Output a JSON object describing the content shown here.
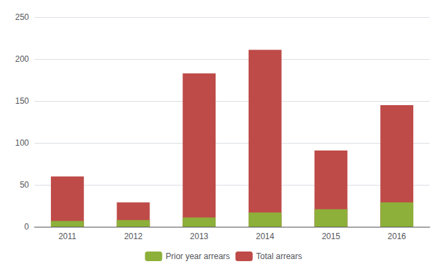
{
  "chart_data": {
    "type": "bar",
    "categories": [
      "2011",
      "2012",
      "2013",
      "2014",
      "2015",
      "2016"
    ],
    "series": [
      {
        "name": "Prior year arrears",
        "color": "#8db03a",
        "values": [
          7,
          8,
          11,
          17,
          21,
          29
        ]
      },
      {
        "name": "Total arrears",
        "color": "#be4b48",
        "values": [
          60,
          29,
          183,
          211,
          91,
          145
        ]
      }
    ],
    "ylim": [
      0,
      250
    ],
    "yticks": [
      0,
      50,
      100,
      150,
      200,
      250
    ],
    "grid": true,
    "legend": "bottom"
  }
}
